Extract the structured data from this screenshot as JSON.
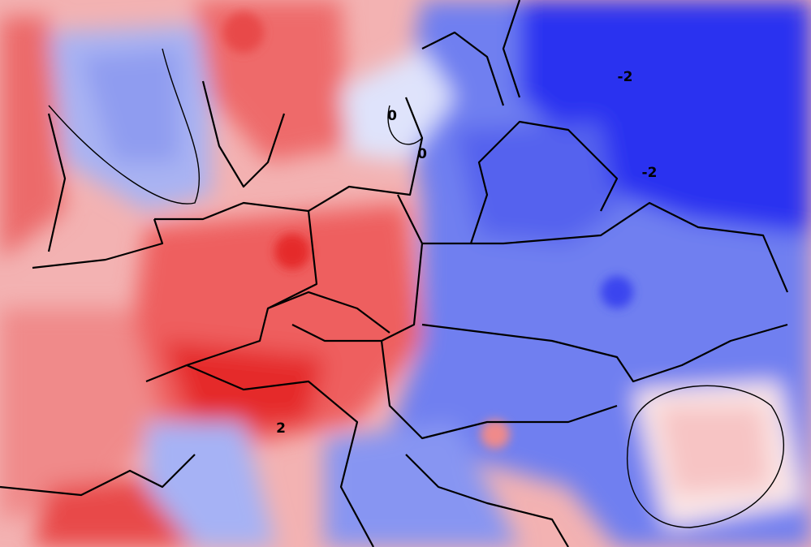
{
  "map": {
    "contour_labels": [
      "-2",
      "-2",
      "0",
      "0",
      "2"
    ]
  }
}
